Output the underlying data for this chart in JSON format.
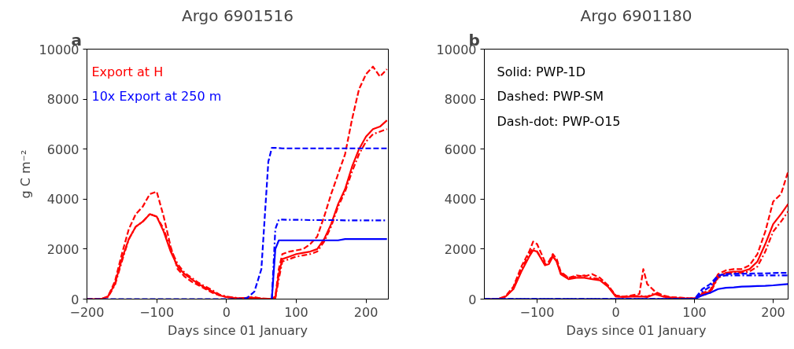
{
  "chart_data": [
    {
      "type": "line",
      "title": "Argo 6901516",
      "xlabel": "Days since 01 January",
      "ylabel": "g C m⁻²",
      "annotations": [
        "a",
        "Export at H",
        "10x Export at 250 m"
      ],
      "x": [
        -200,
        -180,
        -170,
        -160,
        -150,
        -140,
        -130,
        -120,
        -110,
        -100,
        -90,
        -80,
        -70,
        -60,
        -50,
        -40,
        -30,
        -20,
        -10,
        0,
        10,
        20,
        30,
        40,
        50,
        60,
        65,
        70,
        75,
        80,
        90,
        100,
        110,
        120,
        130,
        140,
        150,
        160,
        170,
        180,
        190,
        200,
        210,
        220,
        230
      ],
      "series": [
        {
          "color": "#ff0000",
          "line_style": "solid",
          "values": [
            0,
            0,
            100,
            600,
            1600,
            2400,
            2900,
            3100,
            3400,
            3300,
            2700,
            1900,
            1300,
            1000,
            800,
            600,
            450,
            300,
            150,
            80,
            50,
            30,
            50,
            50,
            20,
            10,
            20,
            50,
            1000,
            1600,
            1700,
            1800,
            1850,
            1900,
            2000,
            2400,
            3000,
            3800,
            4400,
            5300,
            6000,
            6500,
            6800,
            6900,
            7150
          ]
        },
        {
          "color": "#ff0000",
          "line_style": "dashed",
          "values": [
            0,
            0,
            100,
            700,
            1800,
            2800,
            3400,
            3700,
            4200,
            4300,
            3300,
            2100,
            1200,
            900,
            700,
            550,
            400,
            250,
            150,
            80,
            50,
            30,
            60,
            80,
            20,
            10,
            20,
            100,
            1200,
            1800,
            1900,
            1950,
            2000,
            2200,
            2500,
            3300,
            4200,
            5000,
            5800,
            7200,
            8400,
            9000,
            9300,
            8900,
            9200
          ]
        },
        {
          "color": "#ff0000",
          "line_style": "dashdot",
          "values": [
            0,
            0,
            80,
            550,
            1500,
            2400,
            2900,
            3100,
            3400,
            3300,
            2800,
            2000,
            1400,
            1050,
            850,
            650,
            500,
            350,
            180,
            100,
            60,
            40,
            50,
            40,
            20,
            10,
            10,
            30,
            800,
            1500,
            1600,
            1700,
            1750,
            1800,
            1900,
            2300,
            2900,
            3700,
            4300,
            5100,
            5800,
            6300,
            6600,
            6700,
            6800
          ]
        },
        {
          "color": "#0000ff",
          "line_style": "solid",
          "values": [
            null,
            null,
            null,
            null,
            null,
            null,
            null,
            null,
            null,
            null,
            null,
            null,
            null,
            null,
            null,
            null,
            null,
            null,
            null,
            null,
            null,
            null,
            null,
            null,
            null,
            null,
            0,
            2000,
            2350,
            2350,
            2350,
            2350,
            2350,
            2350,
            2350,
            2350,
            2350,
            2350,
            2400,
            2400,
            2400,
            2400,
            2400,
            2400,
            2400
          ]
        },
        {
          "color": "#0000ff",
          "line_style": "dashed",
          "x": [
            -200,
            20,
            30,
            40,
            50,
            60,
            65,
            70,
            80,
            230
          ],
          "values": [
            0,
            0,
            50,
            300,
            1200,
            5500,
            6050,
            6050,
            6030,
            6030
          ]
        },
        {
          "color": "#0000ff",
          "line_style": "dashdot",
          "values": [
            null,
            null,
            null,
            null,
            null,
            null,
            null,
            null,
            null,
            null,
            null,
            null,
            null,
            null,
            null,
            null,
            null,
            null,
            null,
            null,
            null,
            null,
            null,
            null,
            null,
            null,
            0,
            2800,
            3180,
            3180,
            3170,
            3170,
            3170,
            3160,
            3160,
            3160,
            3160,
            3160,
            3150,
            3150,
            3150,
            3150,
            3150,
            3150,
            3150
          ]
        }
      ],
      "xlim": [
        -200,
        232
      ],
      "xticks": [
        -200,
        -100,
        0,
        100,
        200
      ],
      "ylim": [
        0,
        10000
      ],
      "yticks": [
        0,
        2000,
        4000,
        6000,
        8000,
        10000
      ],
      "grid": false
    },
    {
      "type": "line",
      "title": "Argo 6901180",
      "xlabel": "Days since 01 January",
      "annotations": [
        "b",
        "Solid: PWP-1D",
        "Dashed: PWP-SM",
        "Dash-dot: PWP-O15"
      ],
      "x": [
        -167,
        -150,
        -140,
        -130,
        -120,
        -110,
        -105,
        -100,
        -90,
        -85,
        -80,
        -75,
        -70,
        -60,
        -50,
        -40,
        -30,
        -20,
        -10,
        0,
        10,
        20,
        30,
        35,
        40,
        50,
        60,
        70,
        80,
        90,
        100,
        110,
        120,
        130,
        140,
        150,
        160,
        170,
        180,
        190,
        200,
        210,
        219
      ],
      "series": [
        {
          "color": "#ff0000",
          "line_style": "solid",
          "values": [
            0,
            0,
            100,
            400,
            1100,
            1700,
            1950,
            1900,
            1350,
            1400,
            1700,
            1500,
            1000,
            800,
            850,
            850,
            800,
            750,
            500,
            100,
            80,
            100,
            100,
            100,
            80,
            200,
            100,
            50,
            40,
            30,
            20,
            200,
            300,
            900,
            1050,
            1100,
            1100,
            1200,
            1500,
            2200,
            3000,
            3400,
            3800
          ]
        },
        {
          "color": "#ff0000",
          "line_style": "dashed",
          "values": [
            0,
            0,
            120,
            500,
            1300,
            1900,
            2300,
            2200,
            1500,
            1500,
            1800,
            1600,
            1100,
            850,
            950,
            900,
            1000,
            850,
            550,
            150,
            100,
            150,
            200,
            1200,
            600,
            300,
            150,
            80,
            60,
            40,
            20,
            250,
            350,
            1000,
            1150,
            1200,
            1200,
            1350,
            1800,
            2700,
            3900,
            4200,
            5100
          ]
        },
        {
          "color": "#ff0000",
          "line_style": "dashdot",
          "values": [
            0,
            0,
            90,
            450,
            1200,
            1800,
            2050,
            1900,
            1400,
            1450,
            1750,
            1500,
            1050,
            850,
            900,
            950,
            850,
            800,
            550,
            120,
            90,
            120,
            120,
            120,
            100,
            250,
            120,
            60,
            50,
            40,
            30,
            150,
            250,
            850,
            1000,
            1050,
            1050,
            1100,
            1300,
            1900,
            2700,
            3100,
            3500
          ]
        },
        {
          "color": "#0000ff",
          "line_style": "solid",
          "values": [
            0,
            0,
            0,
            0,
            0,
            0,
            0,
            0,
            0,
            0,
            0,
            0,
            0,
            0,
            0,
            0,
            0,
            0,
            0,
            0,
            0,
            0,
            0,
            0,
            0,
            0,
            0,
            0,
            0,
            0,
            0,
            150,
            250,
            400,
            450,
            470,
            500,
            510,
            520,
            530,
            550,
            580,
            600
          ]
        },
        {
          "color": "#0000ff",
          "line_style": "dashed",
          "values": [
            0,
            0,
            0,
            0,
            0,
            0,
            0,
            0,
            0,
            0,
            0,
            0,
            0,
            0,
            0,
            0,
            0,
            0,
            0,
            0,
            0,
            0,
            0,
            0,
            0,
            0,
            0,
            0,
            0,
            0,
            0,
            400,
            600,
            950,
            1000,
            1010,
            1020,
            1020,
            1030,
            1030,
            1040,
            1050,
            1050
          ]
        },
        {
          "color": "#0000ff",
          "line_style": "dashdot",
          "values": [
            0,
            0,
            0,
            0,
            0,
            0,
            0,
            0,
            0,
            0,
            0,
            0,
            0,
            0,
            0,
            0,
            0,
            0,
            0,
            0,
            0,
            0,
            0,
            0,
            0,
            0,
            0,
            0,
            0,
            0,
            0,
            300,
            500,
            900,
            950,
            950,
            950,
            950,
            950,
            950,
            950,
            950,
            950
          ]
        }
      ],
      "xlim": [
        -167,
        219
      ],
      "xticks": [
        -100,
        0,
        100,
        200
      ],
      "ylim": [
        0,
        10000
      ],
      "yticks": [
        0,
        2000,
        4000,
        6000,
        8000,
        10000
      ],
      "grid": false
    }
  ]
}
